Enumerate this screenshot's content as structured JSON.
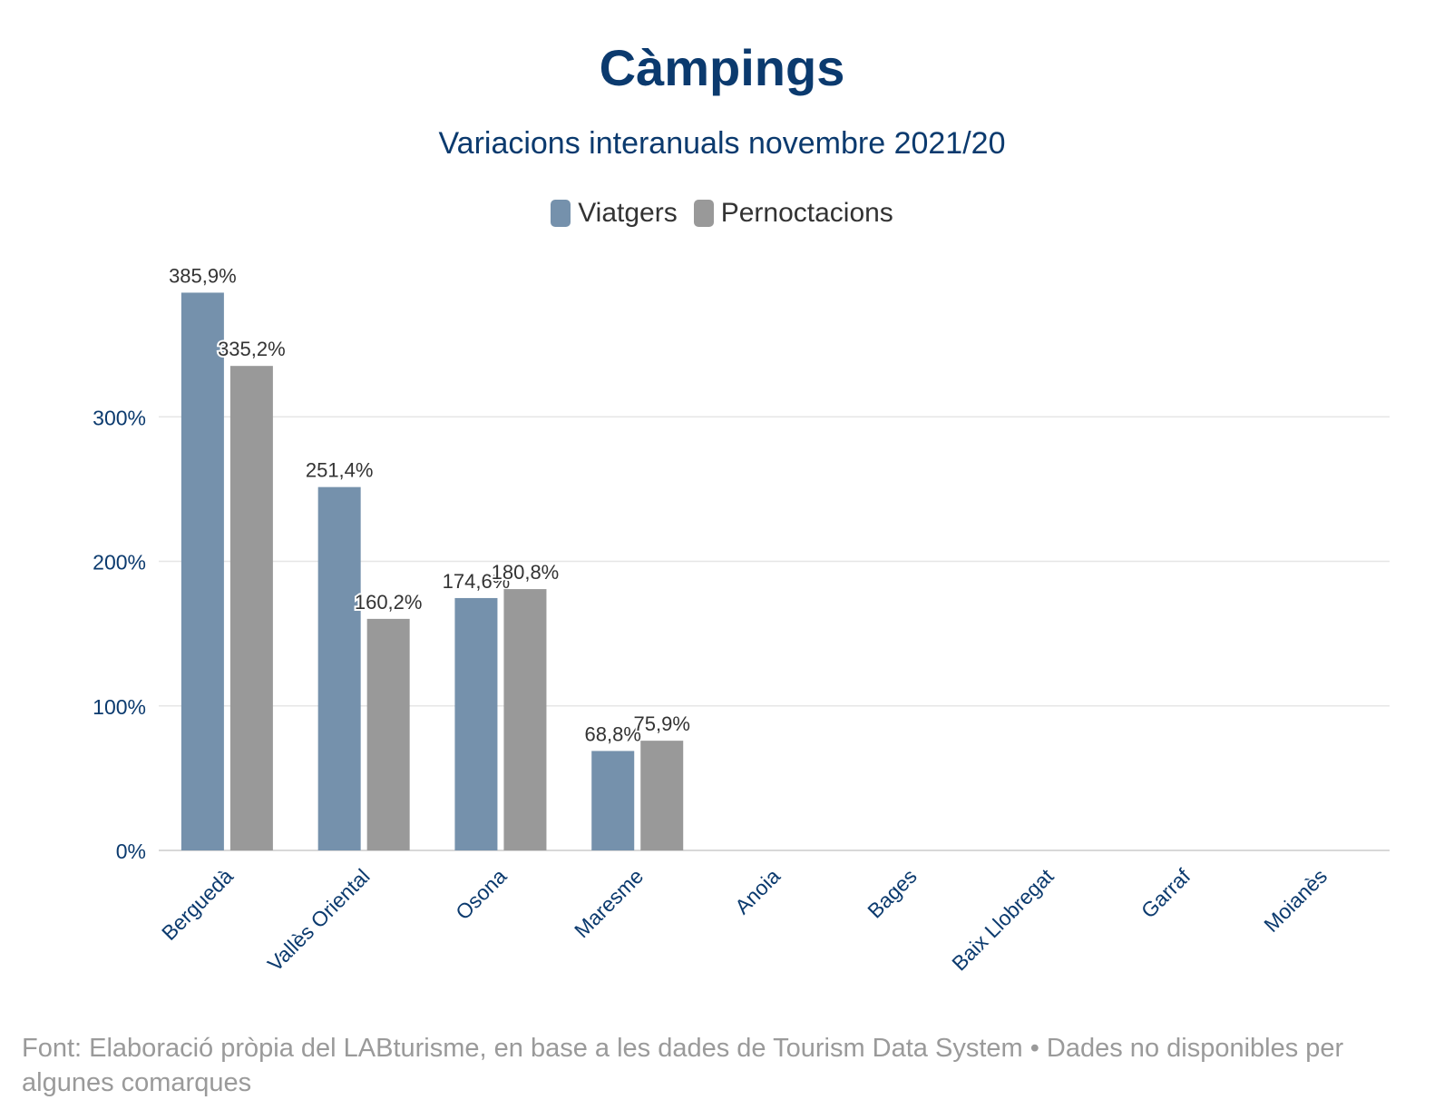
{
  "chart_data": {
    "type": "bar",
    "title": "Càmpings",
    "subtitle": "Variacions interanuals novembre 2021/20",
    "categories": [
      "Berguedà",
      "Vallès Oriental",
      "Osona",
      "Maresme",
      "Anoia",
      "Bages",
      "Baix Llobregat",
      "Garraf",
      "Moianès"
    ],
    "series": [
      {
        "name": "Viatgers",
        "color": "#7591ac",
        "values": [
          385.9,
          251.4,
          174.6,
          68.8,
          null,
          null,
          null,
          null,
          null
        ],
        "labels": [
          "385,9%",
          "251,4%",
          "174,6%",
          "68,8%",
          "",
          "",
          "",
          "",
          ""
        ]
      },
      {
        "name": "Pernoctacions",
        "color": "#999999",
        "values": [
          335.2,
          160.2,
          180.8,
          75.9,
          null,
          null,
          null,
          null,
          null
        ],
        "labels": [
          "335,2%",
          "160,2%",
          "180,8%",
          "75,9%",
          "",
          "",
          "",
          "",
          ""
        ]
      }
    ],
    "y_ticks": [
      0,
      100,
      200,
      300
    ],
    "y_tick_labels": [
      "0%",
      "100%",
      "200%",
      "300%"
    ],
    "ylim": [
      0,
      400
    ],
    "grid": true,
    "legend": "top-center"
  },
  "footer": {
    "line1": "Font: Elaboració pròpia del LABturisme, en base a les dades de Tourism Data System • Dades no disponibles per",
    "line2": "algunes comarques"
  },
  "colors": {
    "title": "#0b3a6e",
    "axis_text": "#0b3a6e",
    "gridline": "#e6e6e6",
    "footer": "#9a9a9a"
  }
}
